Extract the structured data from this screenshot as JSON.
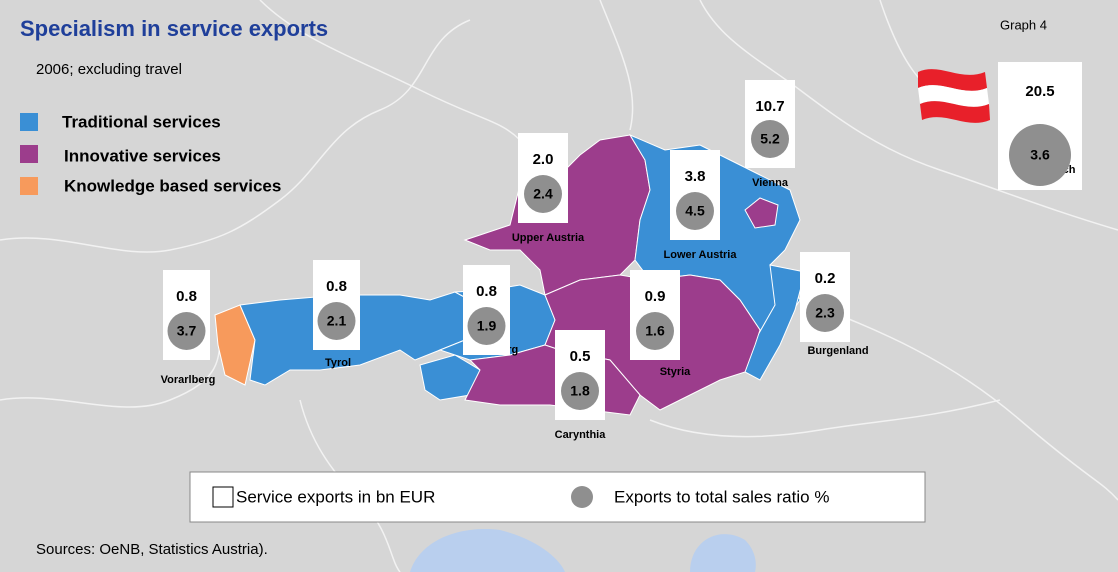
{
  "header": {
    "title": "Specialism in service exports",
    "subtitle": "2006; excluding travel",
    "graph_label": "Graph 4"
  },
  "legend": [
    "Traditional services",
    "Innovative services",
    "Knowledge based services"
  ],
  "regions": [
    {
      "name": "Vorarlberg",
      "exports": "0.8",
      "ratio": "3.7"
    },
    {
      "name": "Tyrol",
      "exports": "0.8",
      "ratio": "2.1"
    },
    {
      "name": "Salzburg",
      "exports": "0.8",
      "ratio": "1.9"
    },
    {
      "name": "Carynthia",
      "exports": "0.5",
      "ratio": "1.8"
    },
    {
      "name": "Styria",
      "exports": "0.9",
      "ratio": "1.6"
    },
    {
      "name": "Upper Austria",
      "exports": "2.0",
      "ratio": "2.4"
    },
    {
      "name": "Lower Austria",
      "exports": "3.8",
      "ratio": "4.5"
    },
    {
      "name": "Vienna",
      "exports": "10.7",
      "ratio": "5.2"
    },
    {
      "name": "Burgenland",
      "exports": "0.2",
      "ratio": "2.3"
    },
    {
      "name": "Österreich",
      "exports": "20.5",
      "ratio": "3.6"
    }
  ],
  "key": {
    "box": "Service exports in bn EUR",
    "circle": "Exports to total sales ratio %"
  },
  "footer": {
    "sources": "Sources: OeNB, Statistics Austria)."
  }
}
